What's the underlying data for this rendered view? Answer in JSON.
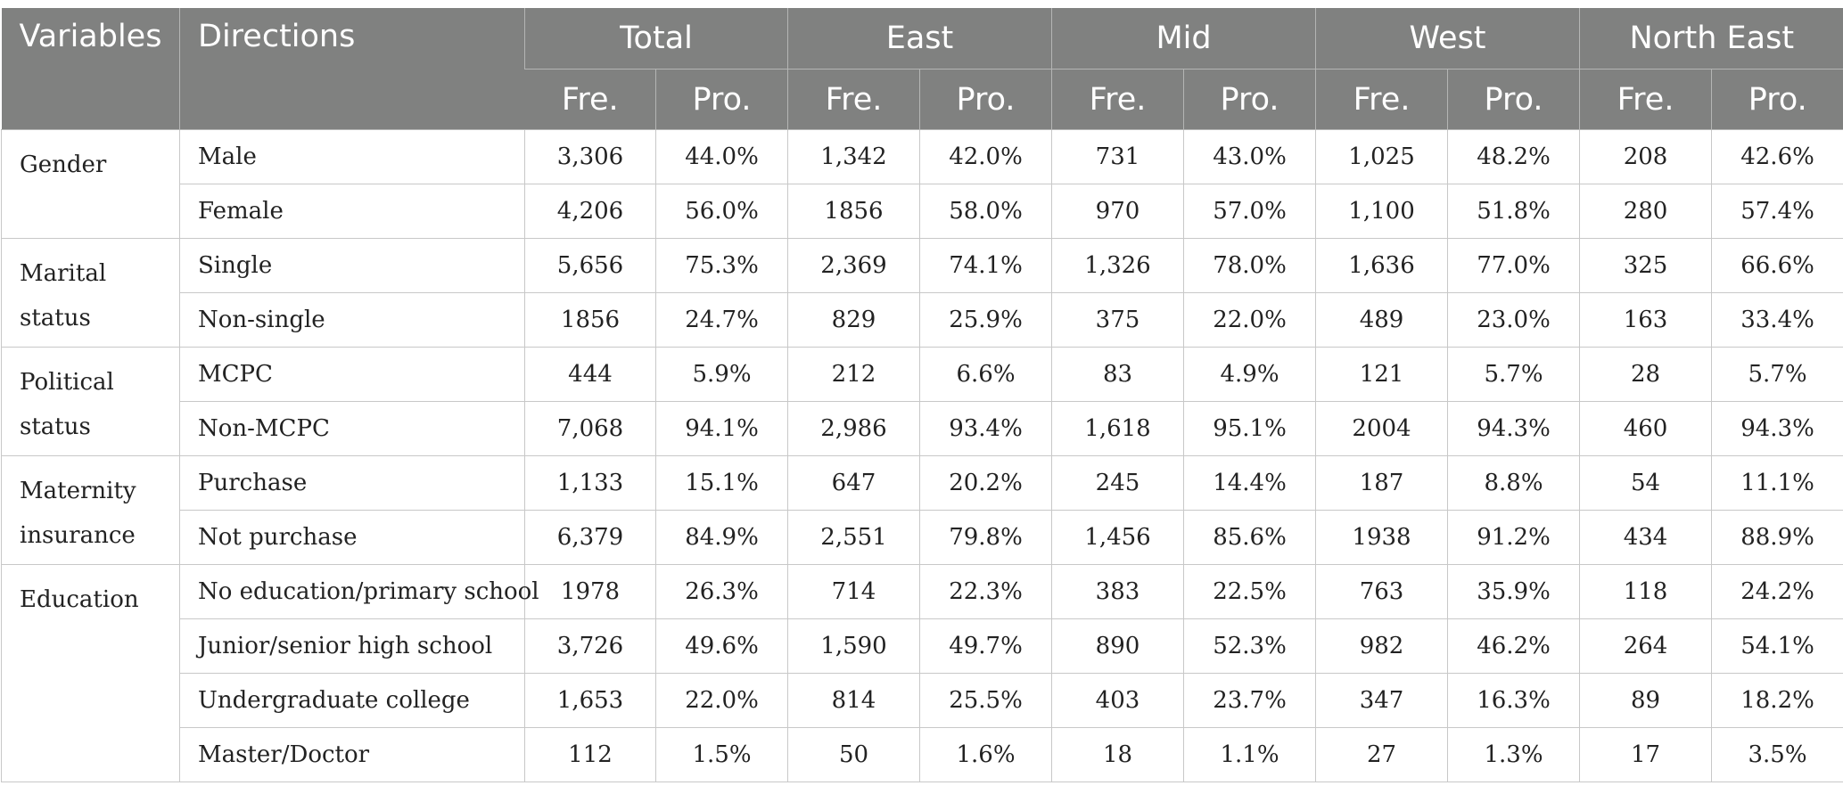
{
  "header": {
    "variables": "Variables",
    "directions": "Directions",
    "groups": [
      "Total",
      "East",
      "Mid",
      "West",
      "North East"
    ],
    "fre": "Fre.",
    "pro": "Pro."
  },
  "rows": [
    {
      "variable": "Gender",
      "span": 2,
      "direction": "Male",
      "values": [
        "3,306",
        "44.0%",
        "1,342",
        "42.0%",
        "731",
        "43.0%",
        "1,025",
        "48.2%",
        "208",
        "42.6%"
      ]
    },
    {
      "variable": null,
      "direction": "Female",
      "values": [
        "4,206",
        "56.0%",
        "1856",
        "58.0%",
        "970",
        "57.0%",
        "1,100",
        "51.8%",
        "280",
        "57.4%"
      ]
    },
    {
      "variable": "Marital status",
      "span": 2,
      "direction": "Single",
      "values": [
        "5,656",
        "75.3%",
        "2,369",
        "74.1%",
        "1,326",
        "78.0%",
        "1,636",
        "77.0%",
        "325",
        "66.6%"
      ]
    },
    {
      "variable": null,
      "direction": "Non-single",
      "values": [
        "1856",
        "24.7%",
        "829",
        "25.9%",
        "375",
        "22.0%",
        "489",
        "23.0%",
        "163",
        "33.4%"
      ]
    },
    {
      "variable": "Political status",
      "span": 2,
      "direction": "MCPC",
      "values": [
        "444",
        "5.9%",
        "212",
        "6.6%",
        "83",
        "4.9%",
        "121",
        "5.7%",
        "28",
        "5.7%"
      ]
    },
    {
      "variable": null,
      "direction": "Non-MCPC",
      "values": [
        "7,068",
        "94.1%",
        "2,986",
        "93.4%",
        "1,618",
        "95.1%",
        "2004",
        "94.3%",
        "460",
        "94.3%"
      ]
    },
    {
      "variable": "Maternity insurance",
      "span": 2,
      "direction": "Purchase",
      "values": [
        "1,133",
        "15.1%",
        "647",
        "20.2%",
        "245",
        "14.4%",
        "187",
        "8.8%",
        "54",
        "11.1%"
      ]
    },
    {
      "variable": null,
      "direction": "Not purchase",
      "values": [
        "6,379",
        "84.9%",
        "2,551",
        "79.8%",
        "1,456",
        "85.6%",
        "1938",
        "91.2%",
        "434",
        "88.9%"
      ]
    },
    {
      "variable": "Education",
      "span": 4,
      "direction": "No education/primary school",
      "values": [
        "1978",
        "26.3%",
        "714",
        "22.3%",
        "383",
        "22.5%",
        "763",
        "35.9%",
        "118",
        "24.2%"
      ]
    },
    {
      "variable": null,
      "direction": "Junior/senior high school",
      "values": [
        "3,726",
        "49.6%",
        "1,590",
        "49.7%",
        "890",
        "52.3%",
        "982",
        "46.2%",
        "264",
        "54.1%"
      ]
    },
    {
      "variable": null,
      "direction": "Undergraduate college",
      "values": [
        "1,653",
        "22.0%",
        "814",
        "25.5%",
        "403",
        "23.7%",
        "347",
        "16.3%",
        "89",
        "18.2%"
      ]
    },
    {
      "variable": null,
      "direction": "Master/Doctor",
      "values": [
        "112",
        "1.5%",
        "50",
        "1.6%",
        "18",
        "1.1%",
        "27",
        "1.3%",
        "17",
        "3.5%"
      ]
    }
  ]
}
